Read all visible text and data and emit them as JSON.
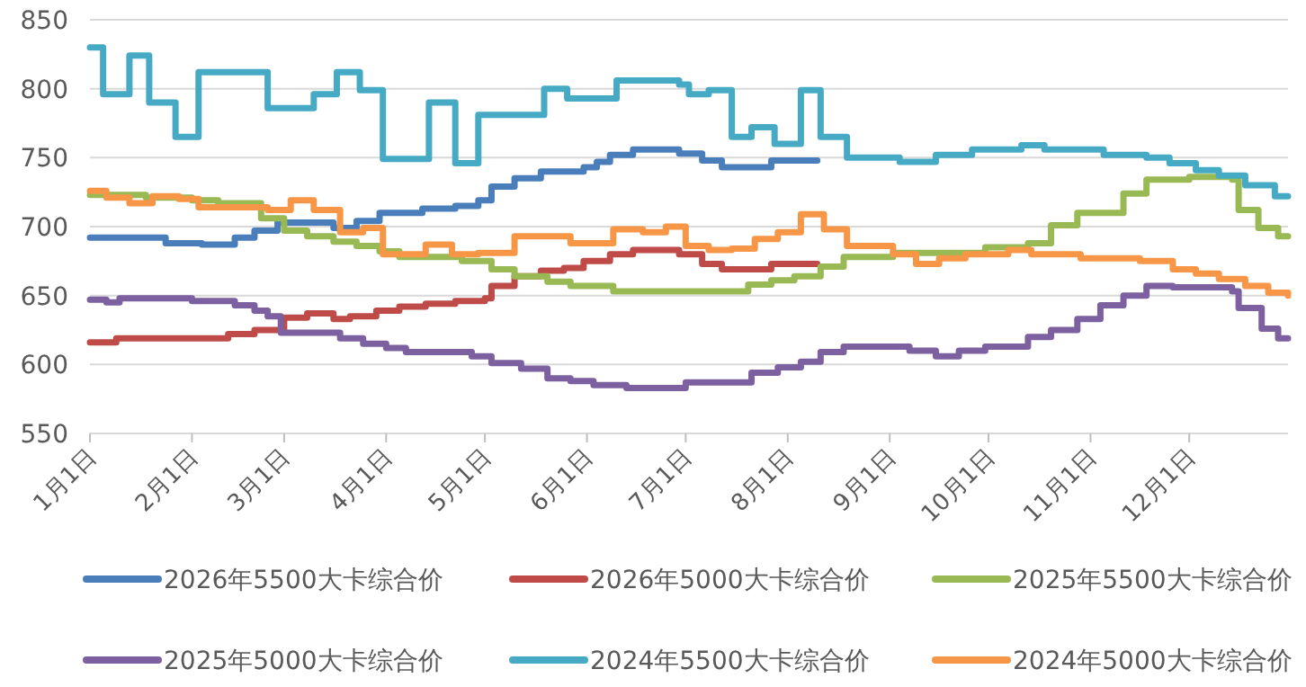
{
  "chart_data": {
    "type": "step",
    "legend": "bottom",
    "grid": "y",
    "ylim": [
      550,
      850
    ],
    "yticks": [
      550,
      600,
      650,
      700,
      750,
      800,
      850
    ],
    "xlim": [
      "--01-01",
      "--12-31"
    ],
    "xticks": [
      {
        "value": "--01-01",
        "label": "1月1日"
      },
      {
        "value": "--02-01",
        "label": "2月1日"
      },
      {
        "value": "--03-01",
        "label": "3月1日"
      },
      {
        "value": "--04-01",
        "label": "4月1日"
      },
      {
        "value": "--05-01",
        "label": "5月1日"
      },
      {
        "value": "--06-01",
        "label": "6月1日"
      },
      {
        "value": "--07-01",
        "label": "7月1日"
      },
      {
        "value": "--08-01",
        "label": "8月1日"
      },
      {
        "value": "--09-01",
        "label": "9月1日"
      },
      {
        "value": "--10-01",
        "label": "10月1日"
      },
      {
        "value": "--11-01",
        "label": "11月1日"
      },
      {
        "value": "--12-01",
        "label": "12月1日"
      }
    ],
    "series": [
      {
        "name": "2026年5500大卡综合价",
        "color": "#4a7ebb",
        "x": [
          "--01-01",
          "--01-24",
          "--02-04",
          "--02-14",
          "--02-20",
          "--02-27",
          "--03-16",
          "--03-23",
          "--03-30",
          "--04-12",
          "--04-22",
          "--04-29",
          "--05-03",
          "--05-10",
          "--05-18",
          "--05-31",
          "--06-04",
          "--06-08",
          "--06-15",
          "--06-29",
          "--07-06",
          "--07-12",
          "--07-27",
          "--08-10"
        ],
        "values": [
          692,
          688,
          687,
          692,
          697,
          703,
          699,
          704,
          710,
          713,
          715,
          719,
          729,
          735,
          740,
          743,
          747,
          752,
          756,
          753,
          748,
          743,
          748,
          748
        ]
      },
      {
        "name": "2026年5000大卡综合价",
        "color": "#be4b48",
        "x": [
          "--01-01",
          "--01-09",
          "--02-12",
          "--02-20",
          "--03-01",
          "--03-08",
          "--03-16",
          "--03-21",
          "--03-29",
          "--04-05",
          "--04-13",
          "--04-22",
          "--05-01",
          "--05-03",
          "--05-10",
          "--05-18",
          "--05-25",
          "--05-31",
          "--06-08",
          "--06-15",
          "--06-29",
          "--07-06",
          "--07-12",
          "--07-27",
          "--08-10"
        ],
        "values": [
          616,
          619,
          622,
          625,
          634,
          637,
          633,
          635,
          639,
          642,
          644,
          646,
          648,
          657,
          664,
          668,
          670,
          675,
          680,
          683,
          680,
          673,
          669,
          673,
          673
        ]
      },
      {
        "name": "2025年5500大卡综合价",
        "color": "#98b954",
        "x": [
          "--01-01",
          "--01-18",
          "--02-01",
          "--02-09",
          "--02-22",
          "--03-01",
          "--03-08",
          "--03-16",
          "--03-23",
          "--03-30",
          "--04-05",
          "--04-24",
          "--05-03",
          "--05-10",
          "--05-20",
          "--05-27",
          "--06-09",
          "--07-20",
          "--07-27",
          "--08-03",
          "--08-11",
          "--08-18",
          "--09-02",
          "--09-30",
          "--10-13",
          "--10-20",
          "--10-28",
          "--11-11",
          "--11-18",
          "--12-01",
          "--12-14",
          "--12-16",
          "--12-22",
          "--12-28",
          "--12-31"
        ],
        "values": [
          723,
          721,
          719,
          717,
          706,
          697,
          693,
          689,
          686,
          682,
          678,
          675,
          669,
          664,
          660,
          657,
          653,
          658,
          661,
          664,
          671,
          678,
          681,
          685,
          688,
          701,
          710,
          724,
          734,
          736,
          734,
          712,
          699,
          693,
          693
        ]
      },
      {
        "name": "2025年5000大卡综合价",
        "color": "#7d60a0",
        "x": [
          "--01-01",
          "--01-06",
          "--01-10",
          "--02-01",
          "--02-14",
          "--02-20",
          "--02-24",
          "--02-28",
          "--03-18",
          "--03-25",
          "--04-01",
          "--04-07",
          "--04-27",
          "--05-03",
          "--05-12",
          "--05-20",
          "--05-27",
          "--06-03",
          "--06-13",
          "--07-01",
          "--07-21",
          "--07-29",
          "--08-05",
          "--08-11",
          "--08-18",
          "--09-07",
          "--09-15",
          "--09-22",
          "--09-30",
          "--10-13",
          "--10-20",
          "--10-28",
          "--11-04",
          "--11-11",
          "--11-18",
          "--11-26",
          "--12-14",
          "--12-16",
          "--12-23",
          "--12-28",
          "--12-31"
        ],
        "values": [
          647,
          645,
          648,
          646,
          643,
          639,
          635,
          623,
          619,
          615,
          612,
          609,
          606,
          601,
          597,
          590,
          588,
          585,
          583,
          587,
          594,
          598,
          602,
          609,
          613,
          610,
          606,
          610,
          613,
          620,
          625,
          633,
          643,
          650,
          657,
          656,
          653,
          641,
          626,
          619,
          619
        ]
      },
      {
        "name": "2024年5500大卡综合价",
        "color": "#46aac5",
        "x": [
          "--01-01",
          "--01-05",
          "--01-13",
          "--01-19",
          "--01-27",
          "--02-03",
          "--02-24",
          "--03-10",
          "--03-17",
          "--03-24",
          "--03-31",
          "--04-14",
          "--04-22",
          "--04-29",
          "--05-19",
          "--05-26",
          "--06-10",
          "--06-29",
          "--07-02",
          "--07-08",
          "--07-15",
          "--07-21",
          "--07-28",
          "--08-05",
          "--08-11",
          "--08-19",
          "--09-04",
          "--09-15",
          "--09-26",
          "--10-11",
          "--10-18",
          "--11-05",
          "--11-18",
          "--11-25",
          "--12-03",
          "--12-10",
          "--12-18",
          "--12-27",
          "--12-31"
        ],
        "values": [
          830,
          796,
          824,
          790,
          765,
          812,
          786,
          796,
          812,
          799,
          749,
          790,
          746,
          781,
          800,
          793,
          806,
          803,
          796,
          799,
          765,
          772,
          760,
          799,
          765,
          750,
          747,
          752,
          756,
          759,
          756,
          752,
          750,
          746,
          741,
          737,
          730,
          722,
          722
        ]
      },
      {
        "name": "2024年5000大卡综合价",
        "color": "#f79646",
        "x": [
          "--01-01",
          "--01-06",
          "--01-13",
          "--01-20",
          "--01-28",
          "--02-03",
          "--02-24",
          "--03-03",
          "--03-10",
          "--03-18",
          "--03-25",
          "--03-31",
          "--04-13",
          "--04-21",
          "--04-29",
          "--05-10",
          "--05-27",
          "--06-09",
          "--06-18",
          "--06-25",
          "--07-01",
          "--07-08",
          "--07-15",
          "--07-22",
          "--07-29",
          "--08-05",
          "--08-12",
          "--08-19",
          "--09-02",
          "--09-09",
          "--09-16",
          "--09-24",
          "--10-07",
          "--10-14",
          "--10-29",
          "--11-16",
          "--11-26",
          "--12-03",
          "--12-10",
          "--12-18",
          "--12-25",
          "--12-31"
        ],
        "values": [
          726,
          721,
          717,
          722,
          720,
          714,
          712,
          719,
          712,
          696,
          699,
          680,
          687,
          680,
          681,
          693,
          688,
          698,
          696,
          700,
          686,
          683,
          684,
          691,
          696,
          709,
          698,
          686,
          680,
          673,
          677,
          680,
          683,
          680,
          677,
          675,
          669,
          666,
          662,
          657,
          652,
          650
        ]
      }
    ]
  }
}
